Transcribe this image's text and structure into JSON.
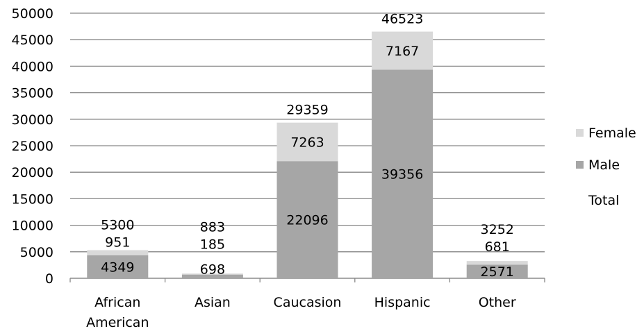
{
  "chart_data": {
    "type": "bar",
    "stacked": true,
    "categories": [
      [
        "African",
        "American"
      ],
      [
        "Asian"
      ],
      [
        "Caucasion"
      ],
      [
        "Hispanic"
      ],
      [
        "Other"
      ]
    ],
    "series": [
      {
        "name": "Male",
        "values": [
          4349,
          698,
          22096,
          39356,
          2571
        ],
        "color": "#a6a6a6"
      },
      {
        "name": "Female",
        "values": [
          951,
          185,
          7263,
          7167,
          681
        ],
        "color": "#d9d9d9"
      },
      {
        "name": "Total",
        "values": [
          5300,
          883,
          29359,
          46523,
          3252
        ],
        "color": "none"
      }
    ],
    "yticks": [
      "0",
      "5000",
      "10000",
      "15000",
      "20000",
      "25000",
      "30000",
      "35000",
      "40000",
      "45000",
      "50000"
    ],
    "ylim": [
      0,
      50000
    ],
    "grid": true,
    "legend_position": "right",
    "legend_order": [
      "Female",
      "Male",
      "Total"
    ],
    "title": "",
    "xlabel": "",
    "ylabel": ""
  }
}
